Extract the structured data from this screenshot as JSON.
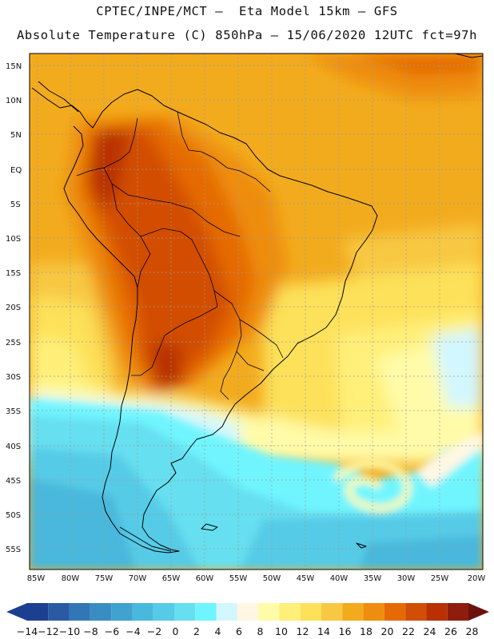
{
  "header": {
    "line1": "CPTEC/INPE/MCT –  Eta Model 15km – GFS",
    "line2": "Absolute Temperature (C) 850hPa – 15/06/2020 12UTC fct=97h"
  },
  "map": {
    "lat_labels": [
      "15N",
      "10N",
      "5N",
      "EQ",
      "5S",
      "10S",
      "15S",
      "20S",
      "25S",
      "30S",
      "35S",
      "40S",
      "45S",
      "50S",
      "55S"
    ],
    "lon_labels": [
      "85W",
      "80W",
      "75W",
      "70W",
      "65W",
      "60W",
      "55W",
      "50W",
      "45W",
      "40W",
      "35W",
      "30W",
      "25W",
      "20W"
    ]
  },
  "colorbar": {
    "labels": [
      "-14",
      "-12",
      "-10",
      "-8",
      "-6",
      "-4",
      "-2",
      "0",
      "2",
      "4",
      "6",
      "8",
      "10",
      "12",
      "14",
      "16",
      "18",
      "20",
      "22",
      "24",
      "26",
      "28"
    ],
    "colors": [
      "#1d3f8f",
      "#2a5aa3",
      "#3277b5",
      "#3a8dc2",
      "#3fa2cf",
      "#48b8dc",
      "#56cbe7",
      "#66dff0",
      "#6ff5ff",
      "#d2f7ff",
      "#fff7e3",
      "#fffba8",
      "#fff07a",
      "#fde15a",
      "#f8c842",
      "#f3ab1e",
      "#ee8d10",
      "#e56a06",
      "#d24d05",
      "#b83004",
      "#8e1d0d",
      "#6a120e"
    ]
  }
}
